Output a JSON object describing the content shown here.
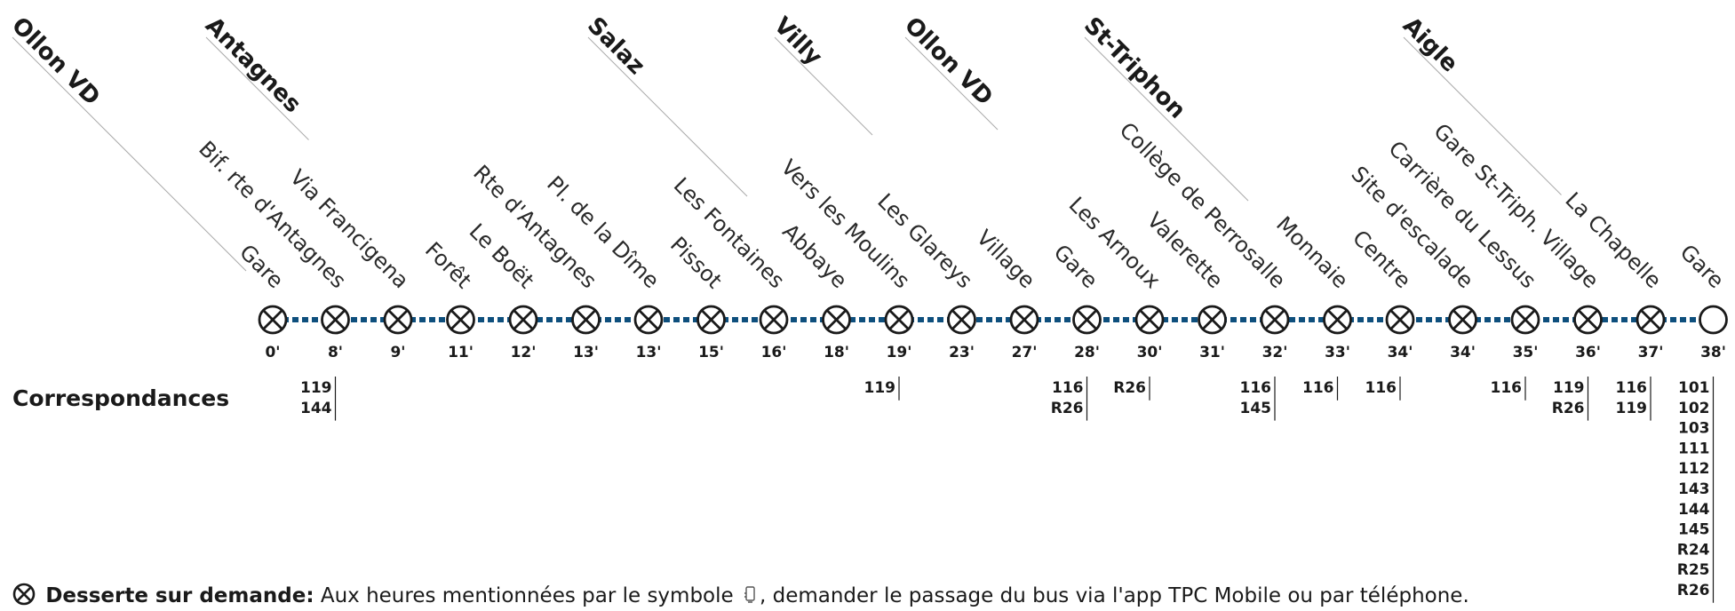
{
  "group_labels": [
    "Ollon VD",
    "Antagnes",
    "Salaz",
    "Villy",
    "Ollon VD",
    "St-Triphon",
    "Aigle"
  ],
  "stops": [
    {
      "label": "Gare",
      "time": "0'",
      "connections": []
    },
    {
      "label": "Bif. rte d'Antagnes",
      "time": "8'",
      "connections": [
        "119",
        "144"
      ]
    },
    {
      "label": "Via Francigena",
      "time": "9'",
      "connections": []
    },
    {
      "label": "Forêt",
      "time": "11'",
      "connections": []
    },
    {
      "label": "Le Boët",
      "time": "12'",
      "connections": []
    },
    {
      "label": "Rte d'Antagnes",
      "time": "13'",
      "connections": []
    },
    {
      "label": "Pl. de la Dîme",
      "time": "13'",
      "connections": []
    },
    {
      "label": "Pissot",
      "time": "15'",
      "connections": []
    },
    {
      "label": "Les Fontaines",
      "time": "16'",
      "connections": []
    },
    {
      "label": "Abbaye",
      "time": "18'",
      "connections": []
    },
    {
      "label": "Vers les Moulins",
      "time": "19'",
      "connections": [
        "119"
      ]
    },
    {
      "label": "Les Glareys",
      "time": "23'",
      "connections": []
    },
    {
      "label": "Village",
      "time": "27'",
      "connections": []
    },
    {
      "label": "Gare",
      "time": "28'",
      "connections": [
        "116",
        "R26"
      ]
    },
    {
      "label": "Les Arnoux",
      "time": "30'",
      "connections": [
        "R26"
      ]
    },
    {
      "label": "Valerette",
      "time": "31'",
      "connections": []
    },
    {
      "label": "Collège de Perrosalle",
      "time": "32'",
      "connections": [
        "116",
        "145"
      ]
    },
    {
      "label": "Monnaie",
      "time": "33'",
      "connections": [
        "116"
      ]
    },
    {
      "label": "Centre",
      "time": "34'",
      "connections": [
        "116"
      ]
    },
    {
      "label": "Site d'escalade",
      "time": "34'",
      "connections": []
    },
    {
      "label": "Carrière du Lessus",
      "time": "35'",
      "connections": [
        "116"
      ]
    },
    {
      "label": "Gare St-Triph. Village",
      "time": "36'",
      "connections": [
        "119",
        "R26"
      ]
    },
    {
      "label": "La Chapelle",
      "time": "37'",
      "connections": [
        "116",
        "119"
      ]
    },
    {
      "label": "Gare",
      "time": "38'",
      "connections": [
        "101",
        "102",
        "103",
        "111",
        "112",
        "143",
        "144",
        "145",
        "R24",
        "R25",
        "R26"
      ]
    }
  ],
  "connections_heading": "Correspondances",
  "legend": {
    "title": "Desserte sur demande:",
    "text_before_symbol": "Aux heures mentionnées par le symbole",
    "text_after_symbol": ", demander le passage du bus via l'app TPC Mobile ou par téléphone."
  },
  "colors": {
    "line": "#0e4f7d",
    "text": "#1a1a1a",
    "guide": "#aaaaaa"
  },
  "icons": {
    "request_stop": "circle-x-icon",
    "terminus": "open-circle-icon",
    "phone": "phone-icon"
  }
}
